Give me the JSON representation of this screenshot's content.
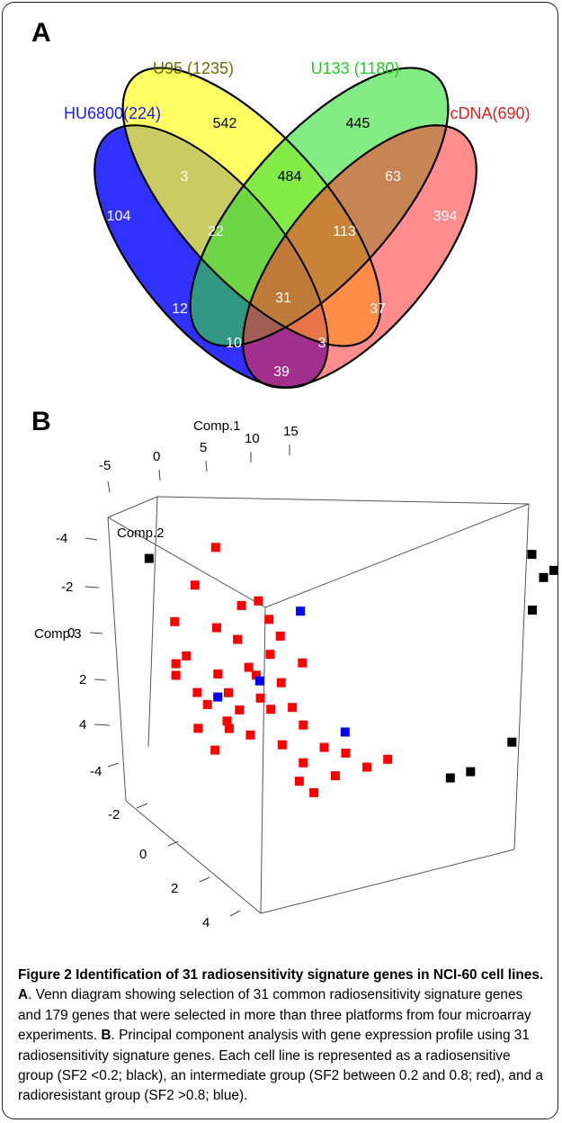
{
  "panel_a": {
    "letter": "A",
    "sets": [
      {
        "label": "HU6800(224)",
        "color": "#1a1aff"
      },
      {
        "label": "U95 (1235)",
        "color": "#6b6b00"
      },
      {
        "label": "U133 (1180)",
        "color": "#22cc22"
      },
      {
        "label": "cDNA(690)",
        "color": "#e02020"
      }
    ],
    "regions": [
      "542",
      "445",
      "104",
      "394",
      "3",
      "484",
      "63",
      "22",
      "113",
      "31",
      "12",
      "37",
      "10",
      "3",
      "39"
    ]
  },
  "panel_b": {
    "letter": "B",
    "axes": {
      "comp1": {
        "label": "Comp.1",
        "ticks": [
          "-5",
          "0",
          "5",
          "10",
          "15"
        ]
      },
      "comp2": {
        "label": "Comp.2",
        "ticks": [
          "-4",
          "-2",
          "0",
          "2",
          "4"
        ]
      },
      "comp3": {
        "label": "Comp.3",
        "ticks": [
          "-4",
          "-2",
          "0",
          "2",
          "4"
        ]
      }
    },
    "colors": {
      "radiosensitive": "#000000",
      "intermediate": "#ff0000",
      "radioresistant": "#0000ff"
    }
  },
  "chart_data": {
    "type": "scatter",
    "title": "",
    "xlabel": "Comp.1",
    "ylabel": "Comp.2",
    "zlabel": "Comp.3",
    "series": [
      {
        "name": "radiosensitive group (SF2 <0.2)",
        "color": "#000000",
        "points": [
          [
            14,
            -3.5,
            -2.5
          ],
          [
            15,
            -3.3,
            -2
          ],
          [
            14.5,
            -3.2,
            -1.8
          ],
          [
            14,
            -1.5,
            -1
          ],
          [
            13,
            3.5,
            2.5
          ],
          [
            10,
            4,
            3.5
          ],
          [
            11,
            4.2,
            3.3
          ],
          [
            -4,
            -1.5,
            -3
          ]
        ]
      },
      {
        "name": "intermediate group (SF2 between 0.2 and 0.8)",
        "color": "#ff0000",
        "points": [
          [
            -1,
            -3.8,
            -3
          ],
          [
            -2,
            -2.5,
            -2
          ],
          [
            1,
            -2,
            -1.5
          ],
          [
            -3,
            -1.5,
            -1
          ],
          [
            -1,
            -1.2,
            -0.8
          ],
          [
            2,
            -1,
            -0.5
          ],
          [
            -2.5,
            -0.8,
            0
          ],
          [
            0,
            -0.5,
            -0.5
          ],
          [
            1.5,
            -0.5,
            0
          ],
          [
            3,
            -0.5,
            0.3
          ],
          [
            -3,
            0,
            0.5
          ],
          [
            -1,
            0,
            0.5
          ],
          [
            0.5,
            0.2,
            0.3
          ],
          [
            2,
            0.3,
            0.8
          ],
          [
            -2,
            0.5,
            1
          ],
          [
            -0.5,
            0.8,
            1
          ],
          [
            1,
            0.8,
            1.2
          ],
          [
            2.5,
            1,
            1.5
          ],
          [
            -1.5,
            1.2,
            1.3
          ],
          [
            0,
            1.2,
            1.5
          ],
          [
            1.5,
            1.3,
            1.5
          ],
          [
            3,
            1.5,
            2
          ],
          [
            -2,
            1.5,
            2
          ],
          [
            -0.5,
            1.8,
            2
          ],
          [
            0.5,
            2,
            2.2
          ],
          [
            2,
            2.3,
            2.5
          ],
          [
            4,
            2.5,
            2.6
          ],
          [
            5,
            2.5,
            2.8
          ],
          [
            3,
            3,
            3
          ],
          [
            6,
            3,
            3.2
          ],
          [
            7,
            2.8,
            3
          ],
          [
            -3,
            -0.5,
            0.2
          ],
          [
            1.5,
            -1.3,
            -1
          ],
          [
            0.2,
            -1.8,
            -1.4
          ],
          [
            -1.2,
            2.3,
            2.6
          ],
          [
            4.5,
            3.3,
            3.4
          ],
          [
            2.8,
            3.6,
            3.5
          ],
          [
            3.5,
            4.2,
            3.8
          ],
          [
            0.8,
            -0.2,
            0.6
          ],
          [
            -0.6,
            1.5,
            1.8
          ]
        ]
      },
      {
        "name": "radioresistant group (SF2 >0.8)",
        "color": "#0000ff",
        "points": [
          [
            3,
            -1.5,
            -1.2
          ],
          [
            1,
            0.5,
            0.7
          ],
          [
            -1,
            1,
            1.1
          ],
          [
            5,
            2,
            2.2
          ]
        ]
      }
    ]
  },
  "caption": {
    "figure_label": "Figure 2",
    "title": "Identification of 31 radiosensitivity signature genes in NCI-60 cell lines.",
    "part_a_label": "A",
    "part_a_text": ". Venn diagram showing selection of 31 common radiosensitivity signature genes and 179 genes that were selected in more than three platforms from four microarray experiments.",
    "part_b_label": "B",
    "part_b_text": ". Principal component analysis with gene expression profile using 31 radiosensitivity signature genes. Each cell line is represented as a radiosensitive group (SF2 <0.2; black), an intermediate group (SF2 between 0.2 and 0.8; red), and a radioresistant group (SF2 >0.8; blue)."
  }
}
